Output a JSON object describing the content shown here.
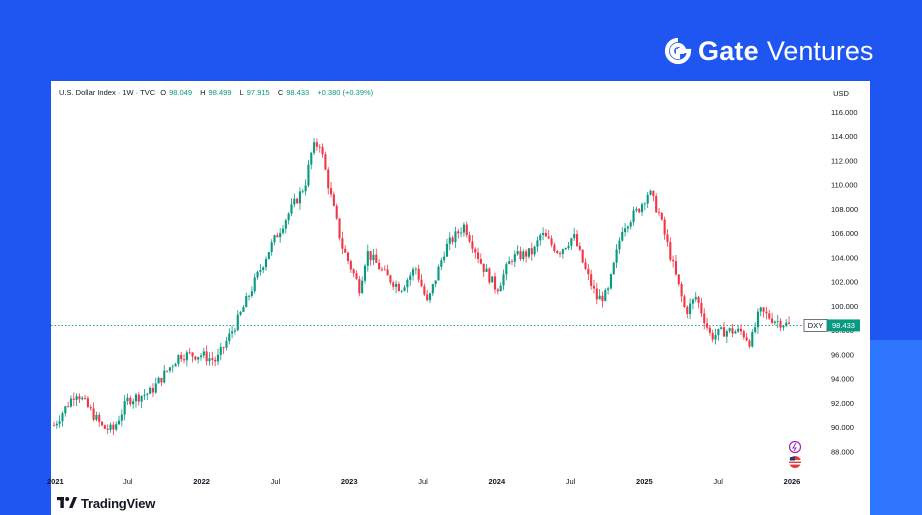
{
  "brand": {
    "name": "Gate",
    "sub": "Ventures"
  },
  "legend": {
    "symbol": "U.S. Dollar Index · 1W · TVC",
    "open_label": "O",
    "open": "98.049",
    "high_label": "H",
    "high": "98.499",
    "low_label": "L",
    "low": "97.915",
    "close_label": "C",
    "close": "98.433",
    "change": "+0.380 (+0.39%)"
  },
  "footer": {
    "logo_text": "TradingView"
  },
  "chart_data": {
    "type": "candlestick",
    "symbol": "DXY",
    "currency": "USD",
    "last_price": "98.433",
    "ylim": [
      86.6,
      116.6
    ],
    "y_ticks": [
      "116.000",
      "114.000",
      "112.000",
      "110.000",
      "108.000",
      "106.000",
      "104.000",
      "102.000",
      "100.000",
      "98.000",
      "96.000",
      "94.000",
      "92.000",
      "90.000",
      "88.000"
    ],
    "x_ticks": [
      {
        "label": "2021",
        "t": 2021.0
      },
      {
        "label": "Jul",
        "t": 2021.5
      },
      {
        "label": "2022",
        "t": 2022.0
      },
      {
        "label": "Jul",
        "t": 2022.5
      },
      {
        "label": "2023",
        "t": 2023.0
      },
      {
        "label": "Jul",
        "t": 2023.5
      },
      {
        "label": "2024",
        "t": 2024.0
      },
      {
        "label": "Jul",
        "t": 2024.5
      },
      {
        "label": "2025",
        "t": 2025.0
      },
      {
        "label": "Jul",
        "t": 2025.5
      },
      {
        "label": "2026",
        "t": 2026.0
      }
    ],
    "x_range": [
      2021.0,
      2026.0
    ],
    "up_color": "#089981",
    "down_color": "#f23645",
    "price_line_color": "#089981",
    "path_anchors": [
      [
        2021.0,
        90.2
      ],
      [
        2021.15,
        93.0
      ],
      [
        2021.33,
        90.0
      ],
      [
        2021.4,
        89.8
      ],
      [
        2021.5,
        92.3
      ],
      [
        2021.65,
        92.9
      ],
      [
        2021.85,
        96.0
      ],
      [
        2022.0,
        96.0
      ],
      [
        2022.1,
        95.5
      ],
      [
        2022.25,
        99.0
      ],
      [
        2022.45,
        104.5
      ],
      [
        2022.55,
        106.8
      ],
      [
        2022.7,
        110.0
      ],
      [
        2022.75,
        113.0
      ],
      [
        2022.8,
        113.5
      ],
      [
        2022.85,
        110.5
      ],
      [
        2022.95,
        105.0
      ],
      [
        2023.07,
        101.5
      ],
      [
        2023.12,
        104.5
      ],
      [
        2023.25,
        102.5
      ],
      [
        2023.35,
        101.5
      ],
      [
        2023.45,
        103.2
      ],
      [
        2023.53,
        100.2
      ],
      [
        2023.65,
        104.8
      ],
      [
        2023.78,
        106.7
      ],
      [
        2023.9,
        103.4
      ],
      [
        2024.0,
        101.4
      ],
      [
        2024.1,
        104.0
      ],
      [
        2024.25,
        104.5
      ],
      [
        2024.3,
        106.0
      ],
      [
        2024.42,
        104.5
      ],
      [
        2024.52,
        105.8
      ],
      [
        2024.6,
        103.0
      ],
      [
        2024.68,
        100.6
      ],
      [
        2024.75,
        101.0
      ],
      [
        2024.85,
        106.5
      ],
      [
        2024.96,
        108.0
      ],
      [
        2025.03,
        109.5
      ],
      [
        2025.1,
        107.6
      ],
      [
        2025.18,
        104.0
      ],
      [
        2025.28,
        99.5
      ],
      [
        2025.35,
        100.8
      ],
      [
        2025.45,
        97.5
      ],
      [
        2025.55,
        98.0
      ],
      [
        2025.66,
        97.9
      ],
      [
        2025.72,
        97.0
      ],
      [
        2025.78,
        99.6
      ],
      [
        2025.88,
        98.9
      ],
      [
        2025.98,
        98.433
      ]
    ]
  }
}
